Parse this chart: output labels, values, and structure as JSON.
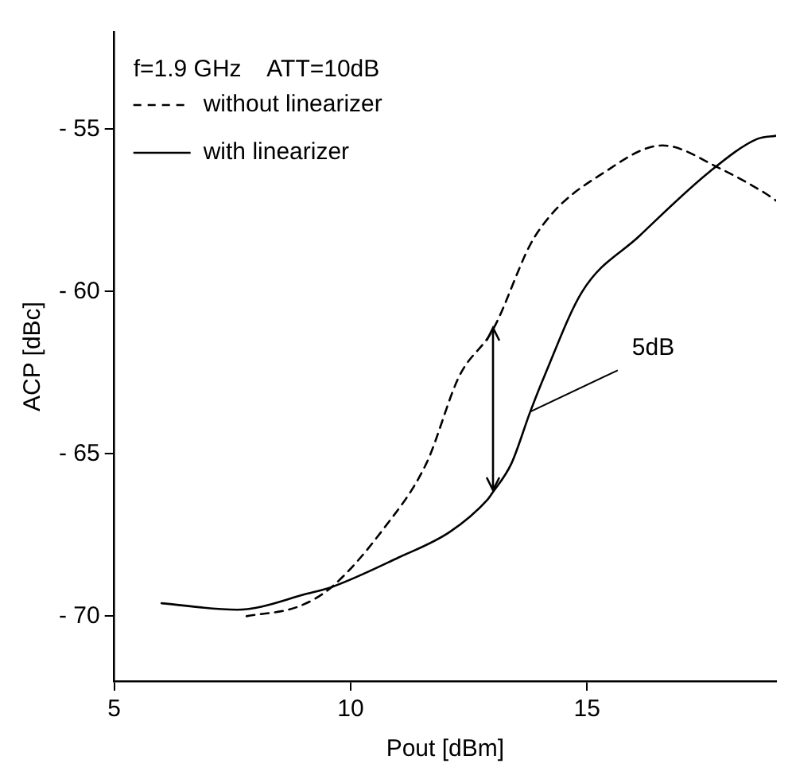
{
  "chart_data": {
    "type": "line",
    "xlabel": "Pout [dBm]",
    "ylabel": "ACP [dBc]",
    "xlim": [
      5,
      19
    ],
    "xticks": [
      5,
      10,
      15
    ],
    "ylim": [
      -72,
      -52
    ],
    "yticks": [
      {
        "value": -55,
        "label": "- 55"
      },
      {
        "value": -60,
        "label": "- 60"
      },
      {
        "value": -65,
        "label": "- 65"
      },
      {
        "value": -70,
        "label": "- 70"
      }
    ],
    "grid": false,
    "legend": "top left",
    "marker": "none",
    "annotations": [
      "f=1.9 GHz    ATT=10dB",
      {
        "text": "5dB",
        "x": 13.8,
        "y": -63.7
      }
    ],
    "series": [
      {
        "name": "without linearizer",
        "color": "#000000",
        "line_style": "dashed",
        "x": [
          7.8,
          8.9,
          9.6,
          10.7,
          11.6,
          12.3,
          13,
          13.9,
          15.5,
          16.6,
          17.8,
          18.8,
          19
        ],
        "values": [
          -70,
          -69.7,
          -69.1,
          -67.3,
          -65.3,
          -62.6,
          -61.2,
          -58.3,
          -56.2,
          -55.5,
          -56.2,
          -57,
          -57.2
        ]
      },
      {
        "name": "with linearizer",
        "color": "#000000",
        "line_style": "solid",
        "x": [
          6,
          7.6,
          9.1,
          9.6,
          11,
          12.1,
          12.9,
          13,
          13.4,
          13.8,
          14.1,
          14.9,
          16.1,
          17.6,
          18.6,
          19
        ],
        "values": [
          -69.6,
          -69.8,
          -69.3,
          -69.1,
          -68.2,
          -67.4,
          -66.4,
          -66.2,
          -65.3,
          -63.7,
          -62.6,
          -60,
          -58.3,
          -56.3,
          -55.3,
          -55.2
        ]
      }
    ]
  }
}
